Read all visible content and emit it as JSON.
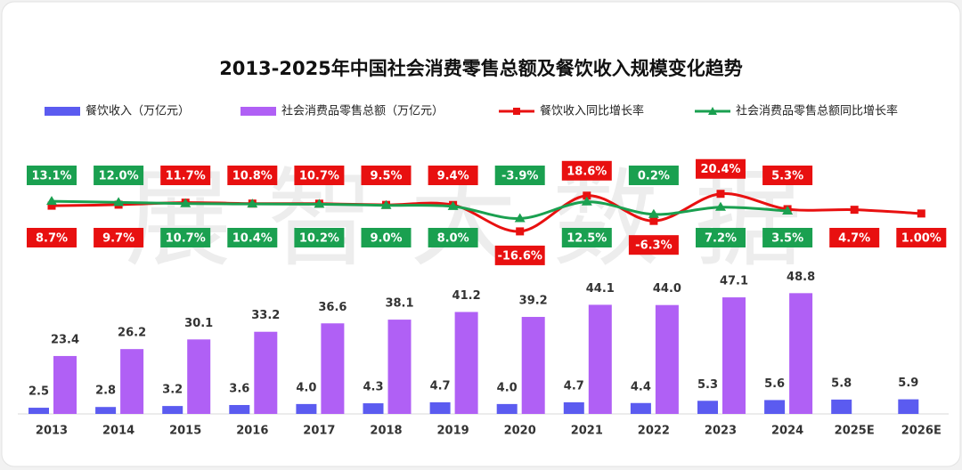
{
  "watermark": "展智大数据",
  "chart_data": {
    "type": "bar-line",
    "title": "2013-2025年中国社会消费零售总额及餐饮收入规模变化趋势",
    "categories": [
      "2013",
      "2014",
      "2015",
      "2016",
      "2017",
      "2018",
      "2019",
      "2020",
      "2021",
      "2022",
      "2023",
      "2024",
      "2025E",
      "2026E"
    ],
    "ylim": [
      0,
      50
    ],
    "y2lim": [
      -100,
      100
    ],
    "series": [
      {
        "name": "餐饮收入（万亿元）",
        "type": "bar",
        "color": "#5b5bf0",
        "values": [
          2.5,
          2.8,
          3.2,
          3.6,
          4.0,
          4.3,
          4.7,
          4.0,
          4.7,
          4.4,
          5.3,
          5.6,
          5.8,
          5.9
        ],
        "value_labels": [
          "2.5",
          "2.8",
          "3.2",
          "3.6",
          "4.0",
          "4.3",
          "4.7",
          "4.0",
          "4.7",
          "4.4",
          "5.3",
          "5.6",
          "5.8",
          "5.9"
        ]
      },
      {
        "name": "社会消费品零售总额（万亿元）",
        "type": "bar",
        "color": "#b060f5",
        "values": [
          23.4,
          26.2,
          30.1,
          33.2,
          36.6,
          38.1,
          41.2,
          39.2,
          44.1,
          44.0,
          47.1,
          48.8,
          null,
          null
        ],
        "value_labels": [
          "23.4",
          "26.2",
          "30.1",
          "33.2",
          "36.6",
          "38.1",
          "41.2",
          "39.2",
          "44.1",
          "44.0",
          "47.1",
          "48.8",
          null,
          null
        ]
      },
      {
        "name": "餐饮收入同比增长率",
        "type": "line",
        "axis": "y2",
        "color": "#e81010",
        "marker": "square",
        "values": [
          8.7,
          9.7,
          11.7,
          10.8,
          10.7,
          9.5,
          9.4,
          -16.6,
          18.6,
          -6.3,
          20.4,
          5.3,
          4.7,
          1.0
        ],
        "value_labels": [
          "8.7%",
          "9.7%",
          "11.7%",
          "10.8%",
          "10.7%",
          "9.5%",
          "9.4%",
          "-16.6%",
          "18.6%",
          "-6.3%",
          "20.4%",
          "5.3%",
          "4.7%",
          "1.00%"
        ]
      },
      {
        "name": "社会消费品零售总额同比增长率",
        "type": "line",
        "axis": "y2",
        "color": "#1aa050",
        "marker": "triangle",
        "values": [
          13.1,
          12.0,
          10.7,
          10.4,
          10.2,
          9.0,
          8.0,
          -3.9,
          12.5,
          0.2,
          7.2,
          3.5,
          null,
          null
        ],
        "value_labels": [
          "13.1%",
          "12.0%",
          "10.7%",
          "10.4%",
          "10.2%",
          "9.0%",
          "8.0%",
          "-3.9%",
          "12.5%",
          "0.2%",
          "7.2%",
          "3.5%",
          null,
          null
        ]
      }
    ]
  }
}
